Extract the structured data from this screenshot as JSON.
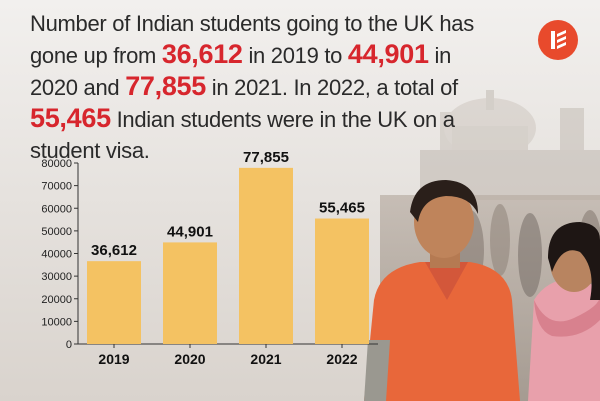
{
  "headline": {
    "t1": "Number of Indian students going to the UK has gone up from ",
    "n1": "36,612",
    "t2": " in 2019 to ",
    "n2": "44,901",
    "t3": " in 2020 and ",
    "n3": "77,855",
    "t4": " in 2021. In 2022, a total of ",
    "n4": "55,465",
    "t5": " Indian students were in the UK on a student visa."
  },
  "colors": {
    "bar": "#f4c262",
    "highlight": "#d7262d",
    "logo": "#e84a2c",
    "text": "#2a2a2a"
  },
  "logo": {
    "icon": "publisher-logo-icon"
  },
  "chart_data": {
    "type": "bar",
    "categories": [
      "2019",
      "2020",
      "2021",
      "2022"
    ],
    "values": [
      36612,
      44901,
      77855,
      55465
    ],
    "value_labels": [
      "36,612",
      "44,901",
      "77,855",
      "55,465"
    ],
    "ylim": [
      0,
      80000
    ],
    "yticks": [
      0,
      10000,
      20000,
      30000,
      40000,
      50000,
      60000,
      70000,
      80000
    ],
    "grid": false
  }
}
